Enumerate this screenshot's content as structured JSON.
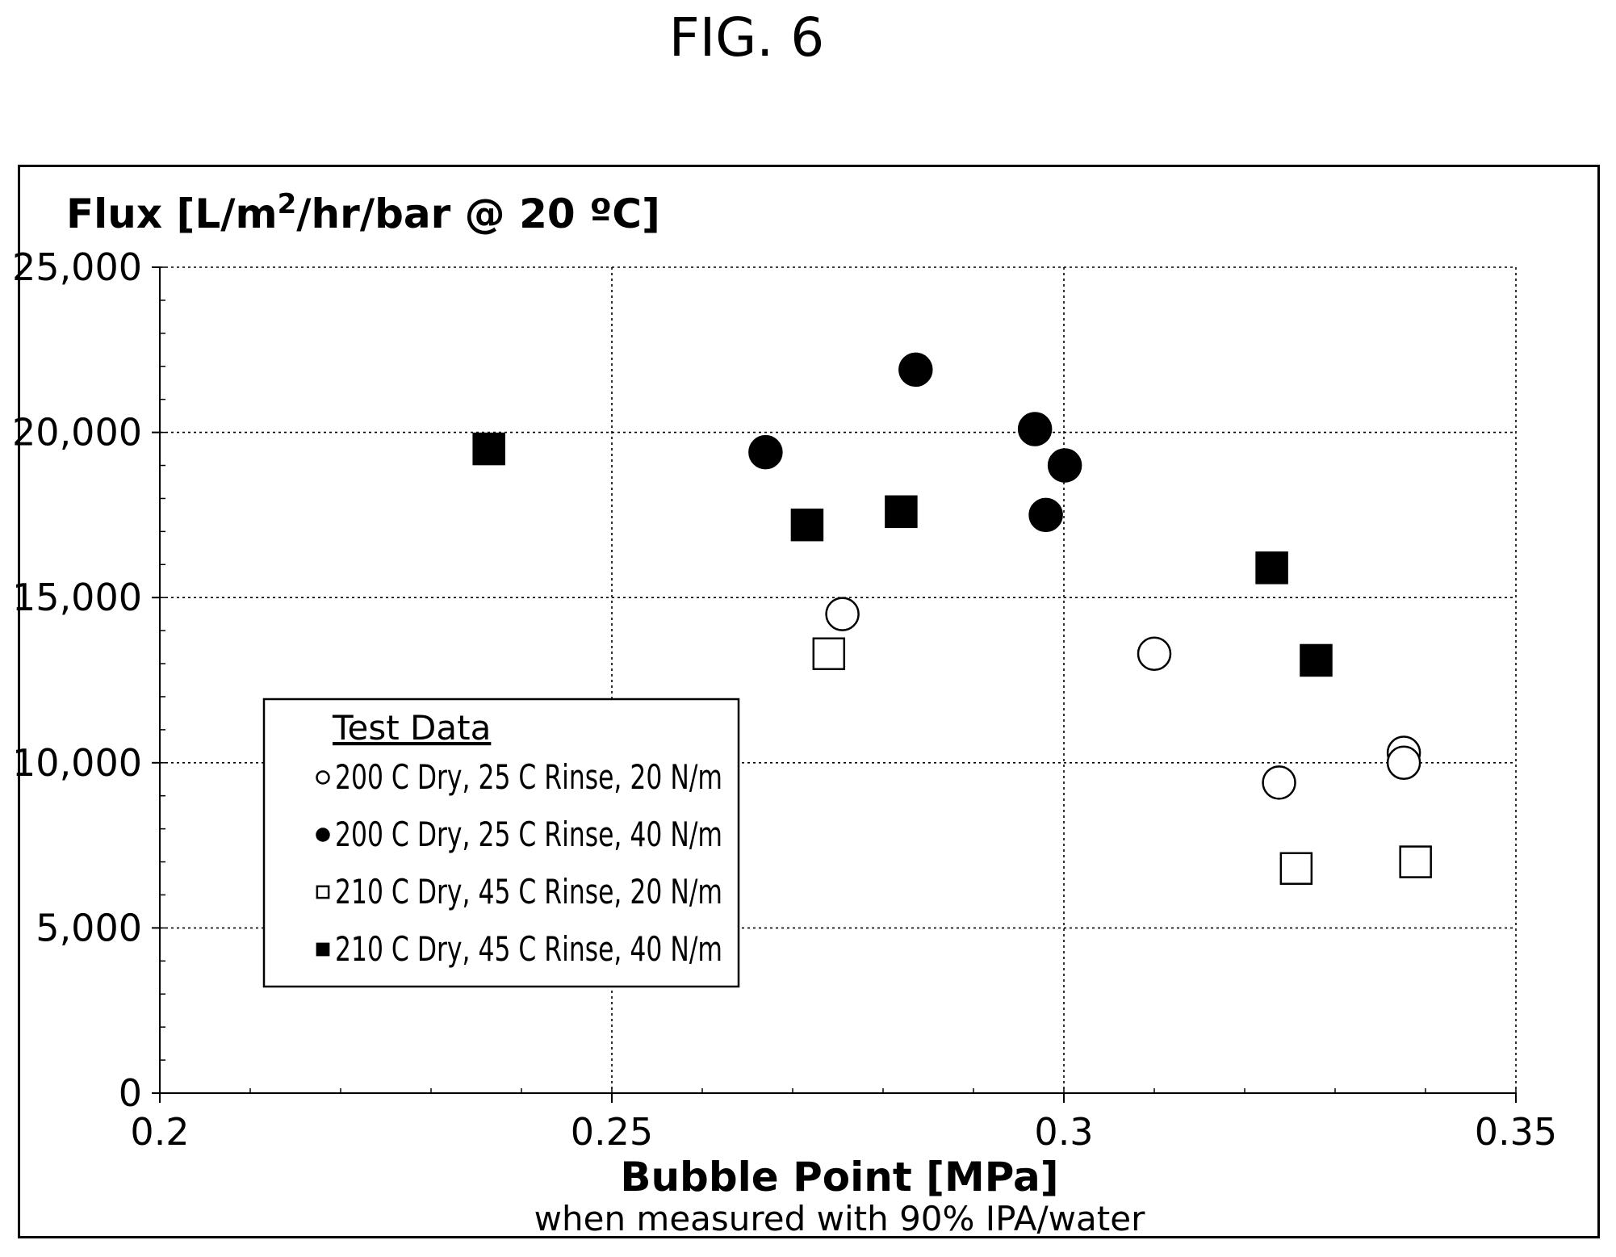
{
  "figure": {
    "title": "FIG. 6"
  },
  "chart_data": {
    "type": "scatter",
    "title": "",
    "ylabel": "Flux [L/m2/hr/bar @ 20 ºC]",
    "ylabel_main": "Flux [L/m",
    "ylabel_sup": "2",
    "ylabel_rest": "/hr/bar @ 20 ºC]",
    "xlabel": "Bubble Point [MPa]",
    "xlabel_sub": "when measured with 90% IPA/water",
    "xlim": [
      0.2,
      0.35
    ],
    "ylim": [
      0,
      25000
    ],
    "x_ticks": [
      0.2,
      0.25,
      0.3,
      0.35
    ],
    "x_tick_labels": [
      "0.2",
      "0.25",
      "0.3",
      "0.35"
    ],
    "y_ticks": [
      0,
      5000,
      10000,
      15000,
      20000,
      25000
    ],
    "y_tick_labels": [
      "0",
      "5,000",
      "10,000",
      "15,000",
      "20,000",
      "25,000"
    ],
    "grid": true,
    "legend": {
      "title": "Test Data",
      "position": "lower-left"
    },
    "series": [
      {
        "name": "200 C Dry, 25 C Rinse, 20 N/m",
        "marker": "circle-open",
        "points": [
          [
            0.2755,
            14500
          ],
          [
            0.31,
            13300
          ],
          [
            0.3238,
            9400
          ],
          [
            0.3376,
            10300
          ],
          [
            0.3376,
            10000
          ]
        ]
      },
      {
        "name": "200 C Dry, 25 C Rinse, 40 N/m",
        "marker": "circle-filled",
        "points": [
          [
            0.267,
            19400
          ],
          [
            0.2836,
            21900
          ],
          [
            0.2968,
            20100
          ],
          [
            0.298,
            17500
          ],
          [
            0.3001,
            19000
          ]
        ]
      },
      {
        "name": "210 C Dry, 45 C Rinse, 20 N/m",
        "marker": "square-open",
        "points": [
          [
            0.274,
            13300
          ],
          [
            0.3257,
            6800
          ],
          [
            0.3389,
            7000
          ]
        ]
      },
      {
        "name": "210 C Dry, 45 C Rinse, 40 N/m",
        "marker": "square-filled",
        "points": [
          [
            0.2364,
            19500
          ],
          [
            0.2716,
            17200
          ],
          [
            0.282,
            17600
          ],
          [
            0.323,
            15900
          ],
          [
            0.3279,
            13100
          ]
        ]
      }
    ]
  }
}
